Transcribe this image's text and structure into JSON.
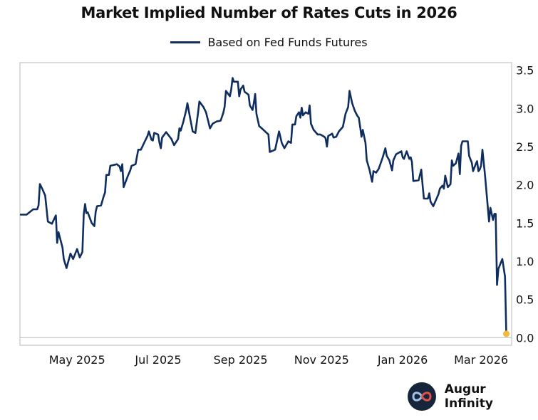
{
  "brand": {
    "name": "Augur Infinity",
    "logo_icon": "infinity-logo-icon"
  },
  "chart_data": {
    "type": "line",
    "title": "Market Implied Number of Rates Cuts in 2026",
    "xlabel": "",
    "ylabel": "",
    "legend_position": "top-center",
    "grid": false,
    "xlim": [
      "2025-03-19",
      "2026-03-24"
    ],
    "ylim": [
      -0.1,
      3.6
    ],
    "y_axis_side": "right",
    "y_ticks": [
      "0.0",
      "0.5",
      "1.0",
      "1.5",
      "2.0",
      "2.5",
      "3.0",
      "3.5"
    ],
    "x_ticks": [
      {
        "date": "2025-05-01",
        "label": "May 2025"
      },
      {
        "date": "2025-07-01",
        "label": "Jul 2025"
      },
      {
        "date": "2025-09-01",
        "label": "Sep 2025"
      },
      {
        "date": "2025-11-01",
        "label": "Nov 2025"
      },
      {
        "date": "2026-01-01",
        "label": "Jan 2026"
      },
      {
        "date": "2026-03-01",
        "label": "Mar 2026"
      }
    ],
    "colors": {
      "line": "#0f2d5e",
      "last_point": "#f0b93a",
      "zero_line": "#bbbbbb",
      "frame": "#d0d0d0"
    },
    "series": [
      {
        "name": "Based on Fed Funds Futures",
        "points": [
          [
            "2025-03-19",
            1.61
          ],
          [
            "2025-03-24",
            1.61
          ],
          [
            "2025-03-29",
            1.68
          ],
          [
            "2025-04-01",
            1.68
          ],
          [
            "2025-04-02",
            1.73
          ],
          [
            "2025-04-03",
            2.01
          ],
          [
            "2025-04-05",
            1.94
          ],
          [
            "2025-04-07",
            1.86
          ],
          [
            "2025-04-09",
            1.52
          ],
          [
            "2025-04-12",
            1.49
          ],
          [
            "2025-04-15",
            1.6
          ],
          [
            "2025-04-16",
            1.24
          ],
          [
            "2025-04-17",
            1.38
          ],
          [
            "2025-04-20",
            1.18
          ],
          [
            "2025-04-21",
            1.03
          ],
          [
            "2025-04-23",
            0.91
          ],
          [
            "2025-04-26",
            1.1
          ],
          [
            "2025-04-28",
            1.03
          ],
          [
            "2025-05-01",
            1.16
          ],
          [
            "2025-05-03",
            1.05
          ],
          [
            "2025-05-05",
            1.12
          ],
          [
            "2025-05-06",
            1.61
          ],
          [
            "2025-05-07",
            1.75
          ],
          [
            "2025-05-08",
            1.63
          ],
          [
            "2025-05-09",
            1.64
          ],
          [
            "2025-05-12",
            1.5
          ],
          [
            "2025-05-14",
            1.46
          ],
          [
            "2025-05-15",
            1.65
          ],
          [
            "2025-05-16",
            1.72
          ],
          [
            "2025-05-19",
            1.73
          ],
          [
            "2025-05-21",
            1.85
          ],
          [
            "2025-05-22",
            1.9
          ],
          [
            "2025-05-23",
            2.13
          ],
          [
            "2025-05-25",
            2.13
          ],
          [
            "2025-05-26",
            2.25
          ],
          [
            "2025-05-31",
            2.27
          ],
          [
            "2025-06-02",
            2.24
          ],
          [
            "2025-06-03",
            2.18
          ],
          [
            "2025-06-04",
            2.27
          ],
          [
            "2025-06-05",
            1.97
          ],
          [
            "2025-06-08",
            2.11
          ],
          [
            "2025-06-10",
            2.19
          ],
          [
            "2025-06-11",
            2.25
          ],
          [
            "2025-06-14",
            2.27
          ],
          [
            "2025-06-16",
            2.46
          ],
          [
            "2025-06-18",
            2.46
          ],
          [
            "2025-06-21",
            2.57
          ],
          [
            "2025-06-23",
            2.64
          ],
          [
            "2025-06-24",
            2.7
          ],
          [
            "2025-06-26",
            2.59
          ],
          [
            "2025-06-27",
            2.58
          ],
          [
            "2025-06-28",
            2.68
          ],
          [
            "2025-07-01",
            2.66
          ],
          [
            "2025-07-02",
            2.55
          ],
          [
            "2025-07-03",
            2.48
          ],
          [
            "2025-07-04",
            2.62
          ],
          [
            "2025-07-07",
            2.69
          ],
          [
            "2025-07-11",
            2.6
          ],
          [
            "2025-07-13",
            2.52
          ],
          [
            "2025-07-16",
            2.6
          ],
          [
            "2025-07-17",
            2.74
          ],
          [
            "2025-07-18",
            2.71
          ],
          [
            "2025-07-20",
            2.83
          ],
          [
            "2025-07-22",
            2.97
          ],
          [
            "2025-07-23",
            3.07
          ],
          [
            "2025-07-25",
            2.88
          ],
          [
            "2025-07-27",
            2.7
          ],
          [
            "2025-07-29",
            2.68
          ],
          [
            "2025-07-31",
            2.94
          ],
          [
            "2025-08-01",
            3.09
          ],
          [
            "2025-08-04",
            3.02
          ],
          [
            "2025-08-06",
            2.95
          ],
          [
            "2025-08-09",
            2.74
          ],
          [
            "2025-08-11",
            2.8
          ],
          [
            "2025-08-14",
            2.83
          ],
          [
            "2025-08-17",
            2.84
          ],
          [
            "2025-08-19",
            2.94
          ],
          [
            "2025-08-20",
            3.02
          ],
          [
            "2025-08-21",
            3.23
          ],
          [
            "2025-08-24",
            3.16
          ],
          [
            "2025-08-25",
            3.25
          ],
          [
            "2025-08-26",
            3.4
          ],
          [
            "2025-08-27",
            3.35
          ],
          [
            "2025-08-30",
            3.35
          ],
          [
            "2025-08-31",
            3.16
          ],
          [
            "2025-09-01",
            3.25
          ],
          [
            "2025-09-03",
            3.3
          ],
          [
            "2025-09-04",
            3.22
          ],
          [
            "2025-09-07",
            3.18
          ],
          [
            "2025-09-08",
            3.04
          ],
          [
            "2025-09-10",
            2.98
          ],
          [
            "2025-09-11",
            3.07
          ],
          [
            "2025-09-12",
            3.19
          ],
          [
            "2025-09-13",
            2.93
          ],
          [
            "2025-09-15",
            2.77
          ],
          [
            "2025-09-17",
            2.74
          ],
          [
            "2025-09-20",
            2.69
          ],
          [
            "2025-09-22",
            2.66
          ],
          [
            "2025-09-23",
            2.43
          ],
          [
            "2025-09-27",
            2.46
          ],
          [
            "2025-09-30",
            2.7
          ],
          [
            "2025-10-02",
            2.55
          ],
          [
            "2025-10-04",
            2.48
          ],
          [
            "2025-10-07",
            2.57
          ],
          [
            "2025-10-09",
            2.55
          ],
          [
            "2025-10-10",
            2.79
          ],
          [
            "2025-10-12",
            2.79
          ],
          [
            "2025-10-13",
            2.9
          ],
          [
            "2025-10-15",
            2.95
          ],
          [
            "2025-10-16",
            2.88
          ],
          [
            "2025-10-17",
            3.01
          ],
          [
            "2025-10-18",
            2.91
          ],
          [
            "2025-10-20",
            2.95
          ],
          [
            "2025-10-22",
            2.93
          ],
          [
            "2025-10-23",
            3.04
          ],
          [
            "2025-10-24",
            2.8
          ],
          [
            "2025-10-26",
            2.72
          ],
          [
            "2025-10-29",
            2.66
          ],
          [
            "2025-10-31",
            2.66
          ],
          [
            "2025-11-03",
            2.63
          ],
          [
            "2025-11-04",
            2.61
          ],
          [
            "2025-11-05",
            2.5
          ],
          [
            "2025-11-06",
            2.64
          ],
          [
            "2025-11-09",
            2.67
          ],
          [
            "2025-11-10",
            2.62
          ],
          [
            "2025-11-12",
            2.63
          ],
          [
            "2025-11-14",
            2.7
          ],
          [
            "2025-11-17",
            2.76
          ],
          [
            "2025-11-19",
            2.93
          ],
          [
            "2025-11-21",
            3.02
          ],
          [
            "2025-11-22",
            3.23
          ],
          [
            "2025-11-24",
            3.07
          ],
          [
            "2025-11-26",
            2.97
          ],
          [
            "2025-11-28",
            2.9
          ],
          [
            "2025-11-29",
            2.88
          ],
          [
            "2025-11-30",
            2.76
          ],
          [
            "2025-12-01",
            2.63
          ],
          [
            "2025-12-02",
            2.72
          ],
          [
            "2025-12-04",
            2.55
          ],
          [
            "2025-12-05",
            2.32
          ],
          [
            "2025-12-07",
            2.2
          ],
          [
            "2025-12-09",
            2.04
          ],
          [
            "2025-12-10",
            2.18
          ],
          [
            "2025-12-12",
            2.16
          ],
          [
            "2025-12-14",
            2.21
          ],
          [
            "2025-12-17",
            2.36
          ],
          [
            "2025-12-19",
            2.48
          ],
          [
            "2025-12-20",
            2.38
          ],
          [
            "2025-12-22",
            2.32
          ],
          [
            "2025-12-24",
            2.19
          ],
          [
            "2025-12-25",
            2.32
          ],
          [
            "2025-12-27",
            2.4
          ],
          [
            "2025-12-31",
            2.44
          ],
          [
            "2026-01-01",
            2.36
          ],
          [
            "2026-01-02",
            2.34
          ],
          [
            "2026-01-04",
            2.44
          ],
          [
            "2026-01-06",
            2.34
          ],
          [
            "2026-01-07",
            2.36
          ],
          [
            "2026-01-08",
            2.3
          ],
          [
            "2026-01-09",
            2.05
          ],
          [
            "2026-01-13",
            2.06
          ],
          [
            "2026-01-15",
            2.2
          ],
          [
            "2026-01-16",
            1.99
          ],
          [
            "2026-01-17",
            1.82
          ],
          [
            "2026-01-20",
            1.82
          ],
          [
            "2026-01-21",
            1.89
          ],
          [
            "2026-01-22",
            1.78
          ],
          [
            "2026-01-24",
            1.72
          ],
          [
            "2026-01-28",
            1.88
          ],
          [
            "2026-01-29",
            1.95
          ],
          [
            "2026-01-31",
            1.99
          ],
          [
            "2026-02-01",
            1.95
          ],
          [
            "2026-02-02",
            2.12
          ],
          [
            "2026-02-04",
            1.97
          ],
          [
            "2026-02-06",
            2.01
          ],
          [
            "2026-02-07",
            2.32
          ],
          [
            "2026-02-08",
            2.25
          ],
          [
            "2026-02-10",
            2.28
          ],
          [
            "2026-02-12",
            2.41
          ],
          [
            "2026-02-13",
            2.14
          ],
          [
            "2026-02-14",
            2.51
          ],
          [
            "2026-02-15",
            2.57
          ],
          [
            "2026-02-19",
            2.57
          ],
          [
            "2026-02-20",
            2.38
          ],
          [
            "2026-02-22",
            2.29
          ],
          [
            "2026-02-23",
            2.18
          ],
          [
            "2026-02-25",
            2.27
          ],
          [
            "2026-02-26",
            2.31
          ],
          [
            "2026-02-27",
            2.18
          ],
          [
            "2026-02-28",
            2.2
          ],
          [
            "2026-03-01",
            2.25
          ],
          [
            "2026-03-02",
            2.46
          ],
          [
            "2026-03-04",
            2.12
          ],
          [
            "2026-03-07",
            1.52
          ],
          [
            "2026-03-08",
            1.7
          ],
          [
            "2026-03-10",
            1.54
          ],
          [
            "2026-03-11",
            1.62
          ],
          [
            "2026-03-12",
            1.62
          ],
          [
            "2026-03-13",
            0.69
          ],
          [
            "2026-03-14",
            0.9
          ],
          [
            "2026-03-17",
            1.03
          ],
          [
            "2026-03-19",
            0.8
          ],
          [
            "2026-03-20",
            0.05
          ]
        ]
      }
    ]
  }
}
